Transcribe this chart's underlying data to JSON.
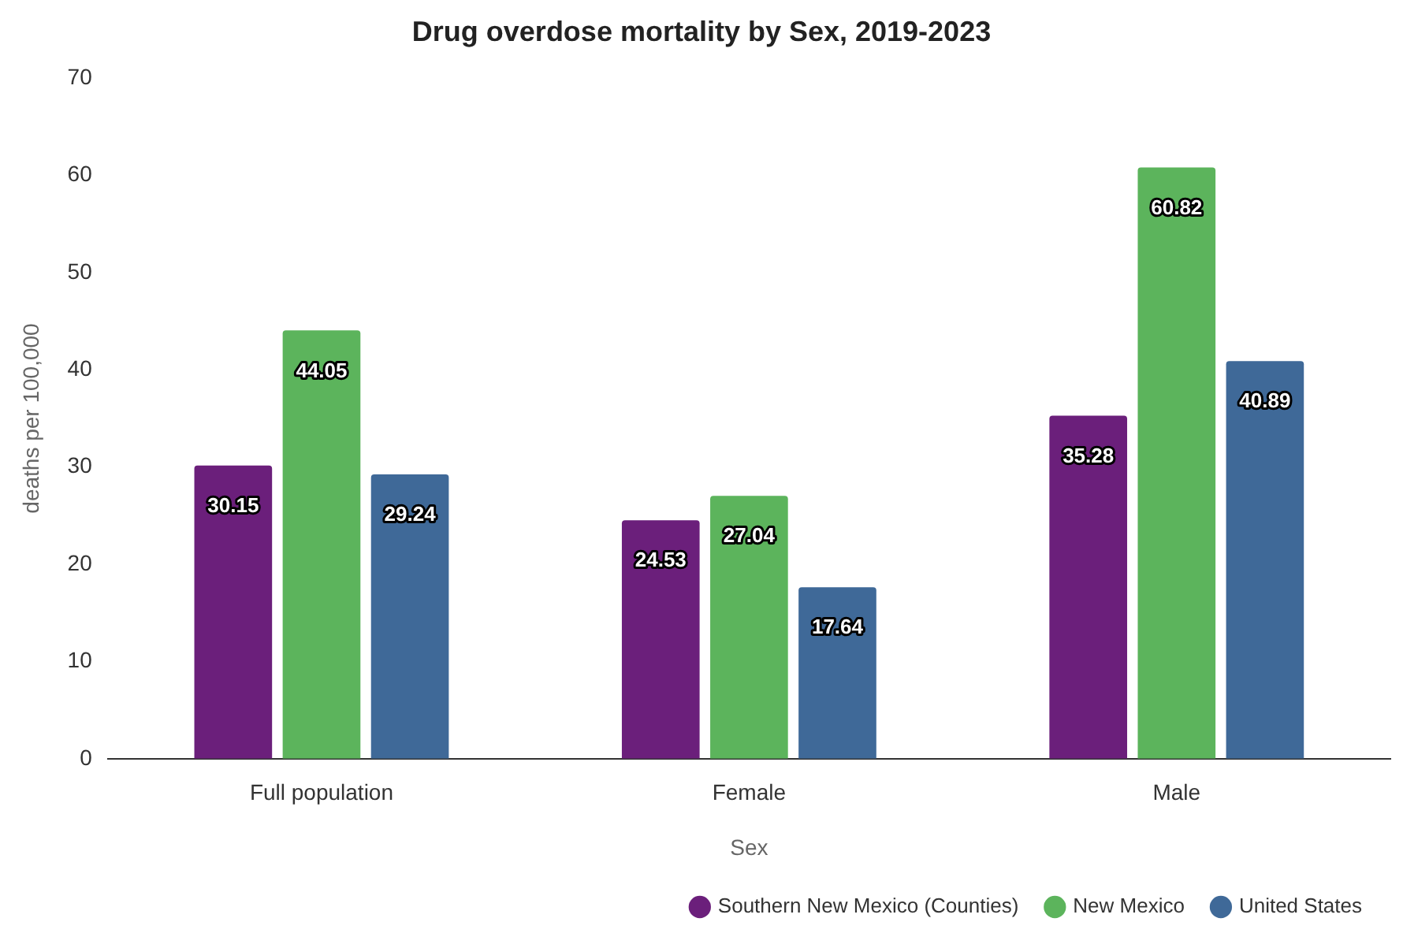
{
  "chart_data": {
    "type": "bar",
    "title": "Drug overdose mortality by Sex, 2019-2023",
    "xlabel": "Sex",
    "ylabel": "deaths per 100,000",
    "categories": [
      "Full population",
      "Female",
      "Male"
    ],
    "series": [
      {
        "name": "Southern New Mexico (Counties)",
        "color": "#6b1f7b",
        "values": [
          30.15,
          24.53,
          35.28
        ]
      },
      {
        "name": "New Mexico",
        "color": "#5cb45c",
        "values": [
          44.05,
          27.04,
          60.82
        ]
      },
      {
        "name": "United States",
        "color": "#3f6998",
        "values": [
          29.24,
          17.64,
          40.89
        ]
      }
    ],
    "ylim": [
      0,
      70
    ],
    "yticks": [
      0,
      10,
      20,
      30,
      40,
      50,
      60,
      70
    ],
    "grid": false,
    "legend": "bottom right",
    "data_labels": true
  }
}
